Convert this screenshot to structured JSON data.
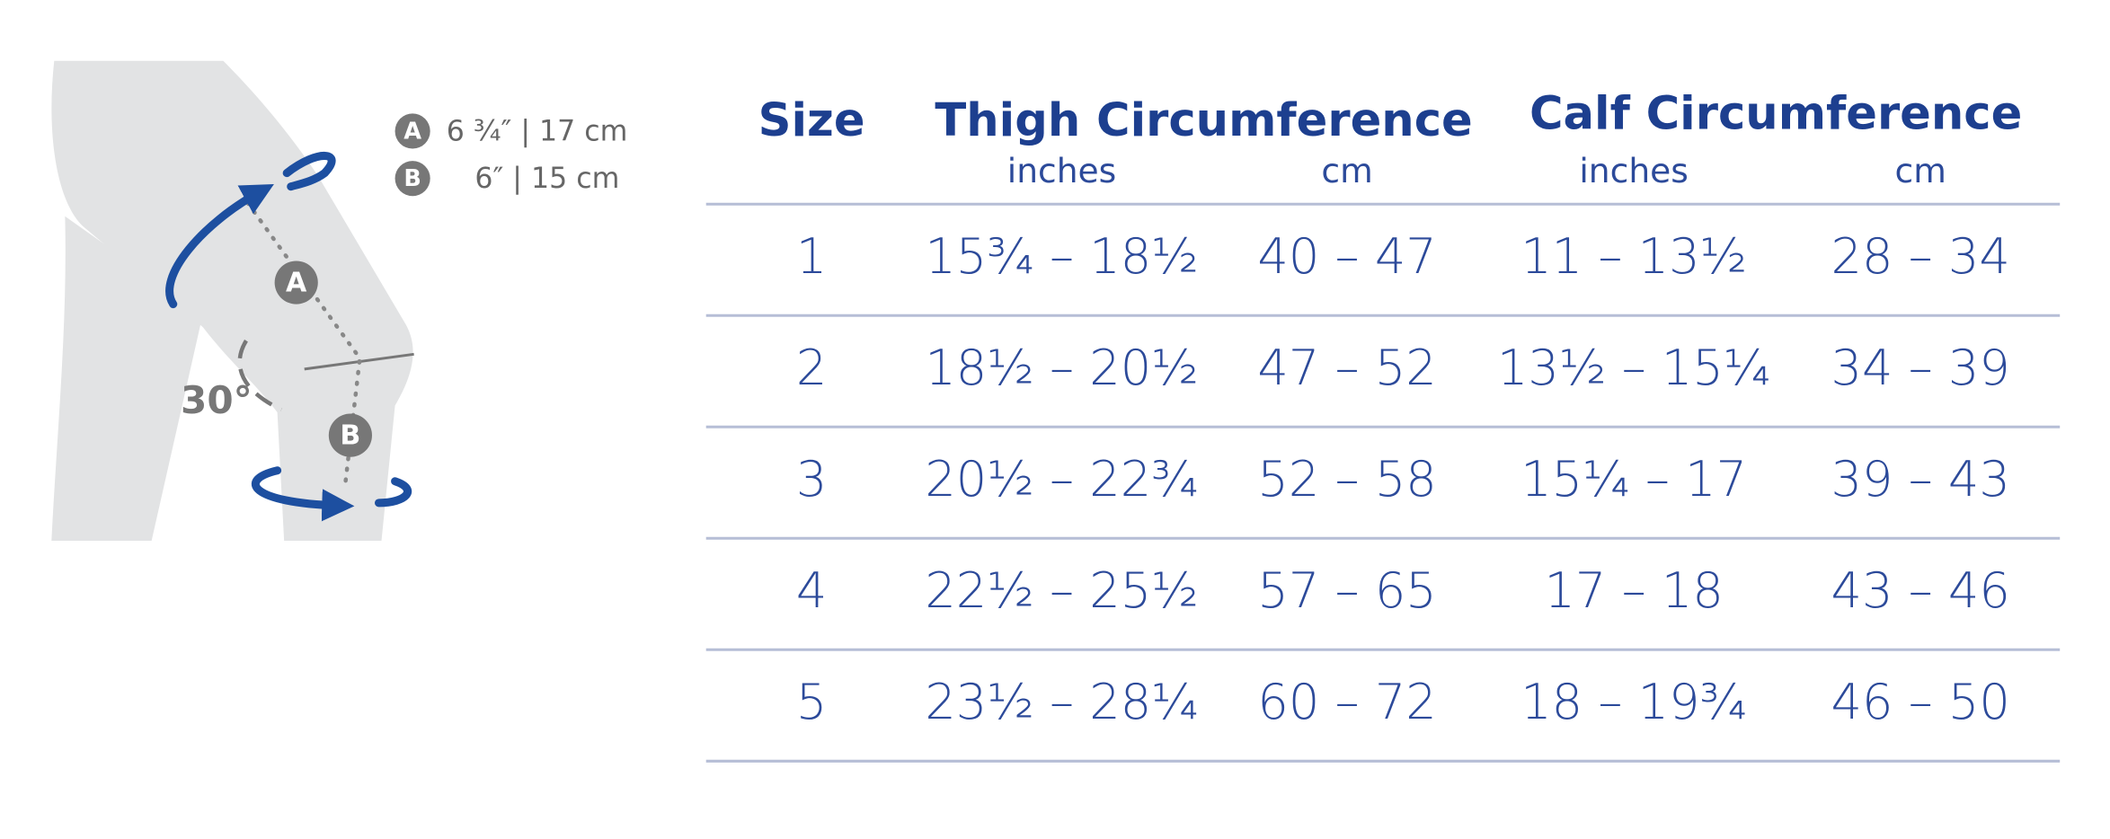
{
  "diagram": {
    "angle": "30°",
    "markers": [
      {
        "badge": "A",
        "measure": "6 ¾″ | 17 cm"
      },
      {
        "badge": "B",
        "measure": "6″ | 15 cm"
      }
    ]
  },
  "table": {
    "headers": [
      "Size",
      "Thigh Circumference",
      "Calf Circumference"
    ],
    "subheaders": [
      "inches",
      "cm",
      "inches",
      "cm"
    ],
    "rows": [
      [
        "1",
        "15¾ – 18½",
        "40 – 47",
        "11 – 13½",
        "28 – 34"
      ],
      [
        "2",
        "18½ – 20½",
        "47 – 52",
        "13½ – 15¼",
        "34 – 39"
      ],
      [
        "3",
        "20½ – 22¾",
        "52 – 58",
        "15¼ – 17",
        "39 – 43"
      ],
      [
        "4",
        "22½ – 25½",
        "57 – 65",
        "17 – 18",
        "43 – 46"
      ],
      [
        "5",
        "23½ – 28¼",
        "60 – 72",
        "18 – 19¾",
        "46 – 50"
      ]
    ]
  }
}
